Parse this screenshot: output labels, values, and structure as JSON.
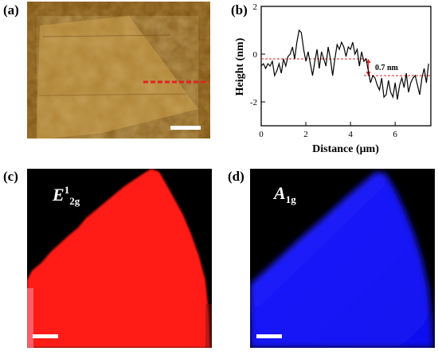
{
  "figure": {
    "panels": [
      {
        "id": "a",
        "label": "(a)",
        "kind": "AFM height image"
      },
      {
        "id": "b",
        "label": "(b)",
        "kind": "height profile"
      },
      {
        "id": "c",
        "label": "(c)",
        "kind": "Raman map",
        "mode_main": "E",
        "mode_sup": "1",
        "mode_sub": "2g"
      },
      {
        "id": "d",
        "label": "(d)",
        "kind": "Raman map",
        "mode_main": "A",
        "mode_sub": "1g"
      }
    ]
  },
  "colors": {
    "afm_bg": "#8a5a18",
    "afm_flake": "#b98a3a",
    "profile_line": "#000000",
    "profile_ref": "#e32222",
    "raman_c": "#ff1a14",
    "raman_d": "#1a1aff",
    "map_bg": "#000000"
  },
  "chart_data": {
    "type": "line",
    "title": "",
    "xlabel": "Distance (μm)",
    "ylabel": "Height (nm)",
    "xlim": [
      0,
      7.6
    ],
    "ylim": [
      -3,
      2
    ],
    "xticks": [
      0,
      2,
      4,
      6
    ],
    "yticks": [
      -2,
      0,
      2
    ],
    "annotation": "0.7 nm",
    "reference_levels": [
      -0.2,
      -0.9
    ],
    "x": [
      0.0,
      0.1,
      0.2,
      0.3,
      0.4,
      0.5,
      0.6,
      0.7,
      0.8,
      0.9,
      1.0,
      1.1,
      1.2,
      1.3,
      1.4,
      1.5,
      1.6,
      1.7,
      1.8,
      1.9,
      2.0,
      2.1,
      2.2,
      2.3,
      2.4,
      2.5,
      2.6,
      2.7,
      2.8,
      2.9,
      3.0,
      3.1,
      3.2,
      3.3,
      3.4,
      3.5,
      3.6,
      3.7,
      3.8,
      3.9,
      4.0,
      4.1,
      4.2,
      4.3,
      4.4,
      4.5,
      4.6,
      4.7,
      4.8,
      4.9,
      5.0,
      5.1,
      5.2,
      5.3,
      5.4,
      5.5,
      5.6,
      5.7,
      5.8,
      5.9,
      6.0,
      6.1,
      6.2,
      6.3,
      6.4,
      6.5,
      6.6,
      6.7,
      6.8,
      6.9,
      7.0,
      7.1,
      7.2,
      7.3,
      7.4,
      7.5
    ],
    "y": [
      -0.5,
      -0.4,
      -0.6,
      -0.4,
      -0.5,
      -0.3,
      -0.9,
      -0.7,
      -0.4,
      -0.8,
      -0.2,
      -0.5,
      -0.1,
      0.0,
      0.3,
      -0.2,
      0.5,
      1.0,
      0.9,
      0.2,
      -0.3,
      0.1,
      -0.4,
      -0.9,
      -0.3,
      0.2,
      -0.6,
      0.1,
      -0.2,
      -0.5,
      0.3,
      -0.2,
      -0.9,
      -0.2,
      0.4,
      0.2,
      0.5,
      0.3,
      -0.1,
      0.3,
      0.2,
      0.5,
      0.0,
      0.2,
      -0.5,
      0.1,
      -0.3,
      -0.2,
      -0.7,
      -1.2,
      -0.9,
      -1.0,
      -1.3,
      -1.5,
      -1.0,
      -1.8,
      -1.7,
      -1.1,
      -1.6,
      -1.8,
      -1.2,
      -1.9,
      -1.3,
      -1.0,
      -1.4,
      -0.8,
      -1.6,
      -1.2,
      -1.0,
      -0.9,
      -1.3,
      -1.7,
      -1.0,
      -0.6,
      -1.2,
      -0.4
    ]
  }
}
